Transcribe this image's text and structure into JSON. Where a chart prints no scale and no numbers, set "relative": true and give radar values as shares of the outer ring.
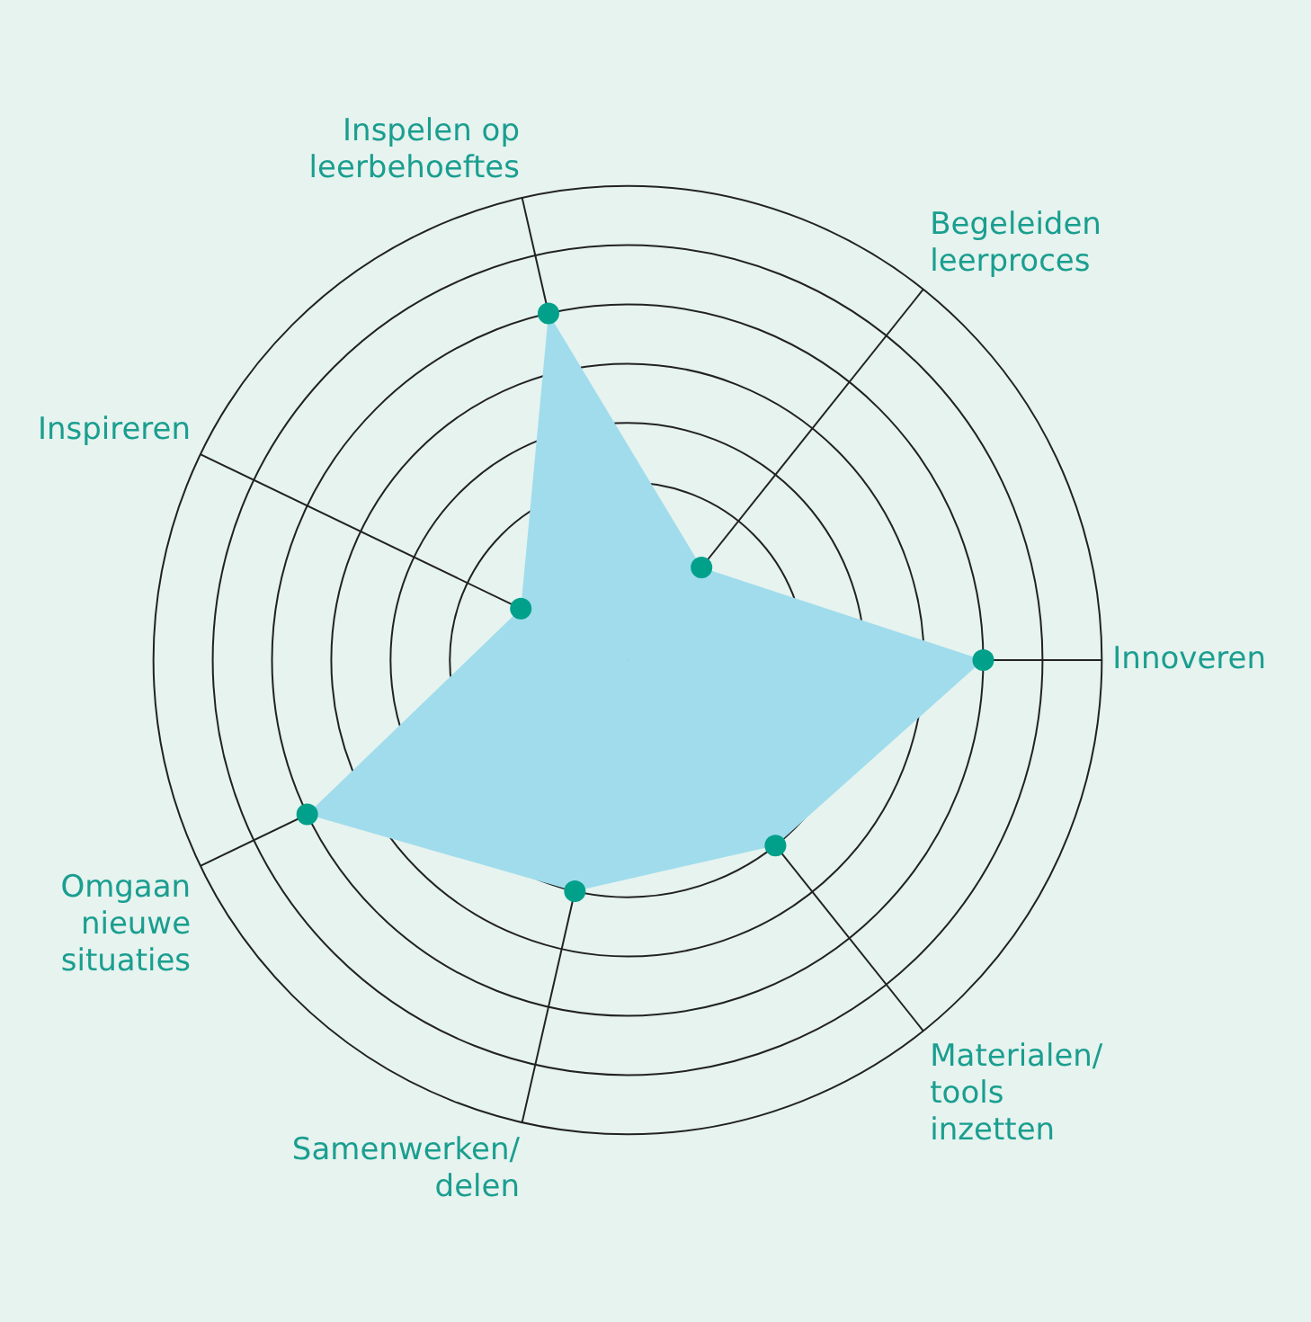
{
  "chart_data": {
    "type": "radar",
    "relative": true,
    "categories": [
      "Inspelen op leerbehoeftes",
      "Begeleiden leerproces",
      "Innoveren",
      "Materialen/ tools inzetten",
      "Samenwerken/ delen",
      "Omgaan nieuwe situaties",
      "Inspireren"
    ],
    "series": [
      {
        "color": "#a0dcec",
        "values": [
          0.75,
          0.25,
          0.75,
          0.5,
          0.5,
          0.75,
          0.25
        ]
      }
    ],
    "marker": "circle",
    "legend": false
  }
}
